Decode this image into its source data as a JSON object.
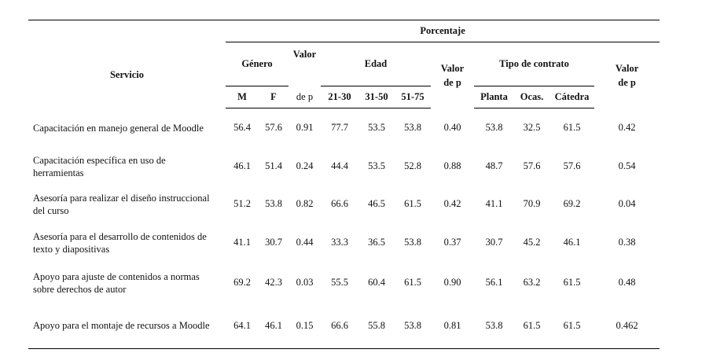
{
  "header": {
    "servicio": "Servicio",
    "porcentaje": "Porcentaje",
    "genero": "Género",
    "valor_p_top": "Valor",
    "valor_p_bottom": "de p",
    "edad": "Edad",
    "valor_de_p_1": "Valor de p",
    "tipo_contrato": "Tipo de contrato",
    "valor_de_p_2": "Valor de p",
    "m": "M",
    "f": "F",
    "age1": "21-30",
    "age2": "31-50",
    "age3": "51-75",
    "planta": "Planta",
    "ocas": "Ocas.",
    "catedra": "Cátedra"
  },
  "rows": [
    {
      "servicio_l1": "Capacitación en manejo general de Moodle",
      "servicio_l2": "",
      "m": "56.4",
      "f": "57.6",
      "p1": "0.91",
      "a1": "77.7",
      "a2": "53.5",
      "a3": "53.8",
      "p2": "0.40",
      "planta": "53.8",
      "ocas": "32.5",
      "catedra": "61.5",
      "p3": "0.42"
    },
    {
      "servicio_l1": "Capacitación específica en uso de",
      "servicio_l2": "herramientas",
      "m": "46.1",
      "f": "51.4",
      "p1": "0.24",
      "a1": "44.4",
      "a2": "53.5",
      "a3": "52.8",
      "p2": "0.88",
      "planta": "48.7",
      "ocas": "57.6",
      "catedra": "57.6",
      "p3": "0.54"
    },
    {
      "servicio_l1": "Asesoría para realizar el diseño instruccional",
      "servicio_l2": "del curso",
      "m": "51.2",
      "f": "53.8",
      "p1": "0.82",
      "a1": "66.6",
      "a2": "46.5",
      "a3": "61.5",
      "p2": "0.42",
      "planta": "41.1",
      "ocas": "70.9",
      "catedra": "69.2",
      "p3": "0.04"
    },
    {
      "servicio_l1": "Asesoría para el desarrollo de contenidos de",
      "servicio_l2": "texto y diapositivas",
      "m": "41.1",
      "f": "30.7",
      "p1": "0.44",
      "a1": "33.3",
      "a2": "36.5",
      "a3": "53.8",
      "p2": "0.37",
      "planta": "30.7",
      "ocas": "45.2",
      "catedra": "46.1",
      "p3": "0.38"
    },
    {
      "servicio_l1": "Apoyo para ajuste de contenidos a normas",
      "servicio_l2": "sobre derechos de autor",
      "m": "69.2",
      "f": "42.3",
      "p1": "0.03",
      "a1": "55.5",
      "a2": "60.4",
      "a3": "61.5",
      "p2": "0.90",
      "planta": "56.1",
      "ocas": "63.2",
      "catedra": "61.5",
      "p3": "0.48"
    },
    {
      "servicio_l1": "Apoyo para el montaje de recursos a Moodle",
      "servicio_l2": "",
      "m": "64.1",
      "f": "46.1",
      "p1": "0.15",
      "a1": "66.6",
      "a2": "55.8",
      "a3": "53.8",
      "p2": "0.81",
      "planta": "53.8",
      "ocas": "61.5",
      "catedra": "61.5",
      "p3": "0.462"
    }
  ]
}
